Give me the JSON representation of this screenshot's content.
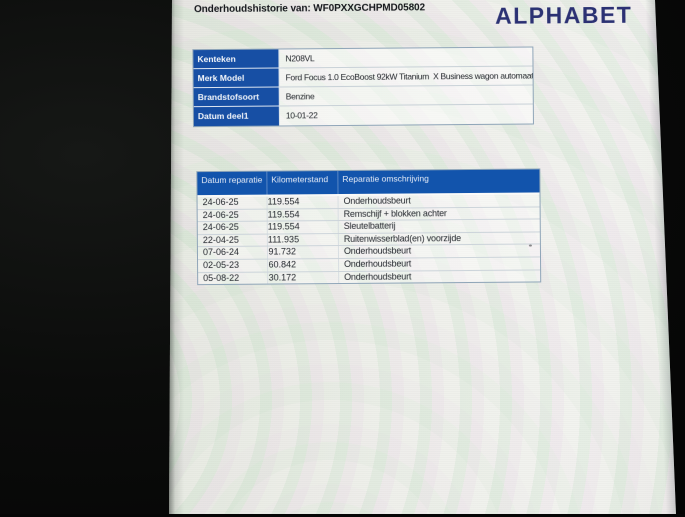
{
  "page": {
    "title": "Onderhoudshistorie van: WF0PXXGCHPMD05802",
    "logo": "ALPHABET"
  },
  "colors": {
    "table_header_blue": "#1254ac",
    "label_column_blue": "#174fa4",
    "logo_navy": "#2b3173",
    "screen_background": "#eef0ea",
    "photo_background": "#0a0b0a"
  },
  "vehicle_table": {
    "rows": [
      {
        "label": "Kenteken",
        "value": "N208VL"
      },
      {
        "label": "Merk Model",
        "value": "Ford Focus 1.0 EcoBoost 92kW Titanium  X Business wagon automaat"
      },
      {
        "label": "Brandstofsoort",
        "value": "Benzine"
      },
      {
        "label": "Datum deel1",
        "value": "10-01-22"
      }
    ]
  },
  "maintenance_table": {
    "headers": [
      "Datum reparatie",
      "Kilometerstand",
      "Reparatie omschrijving"
    ],
    "rows": [
      [
        "24-06-25",
        "119.554",
        "Onderhoudsbeurt"
      ],
      [
        "24-06-25",
        "119.554",
        "Remschijf + blokken achter"
      ],
      [
        "24-06-25",
        "119.554",
        "Sleutelbatterij"
      ],
      [
        "22-04-25",
        "111.935",
        "Ruitenwisserblad(en) voorzijde"
      ],
      [
        "07-06-24",
        "91.732",
        "Onderhoudsbeurt"
      ],
      [
        "02-05-23",
        "60.842",
        "Onderhoudsbeurt"
      ],
      [
        "05-08-22",
        "30.172",
        "Onderhoudsbeurt"
      ]
    ]
  }
}
